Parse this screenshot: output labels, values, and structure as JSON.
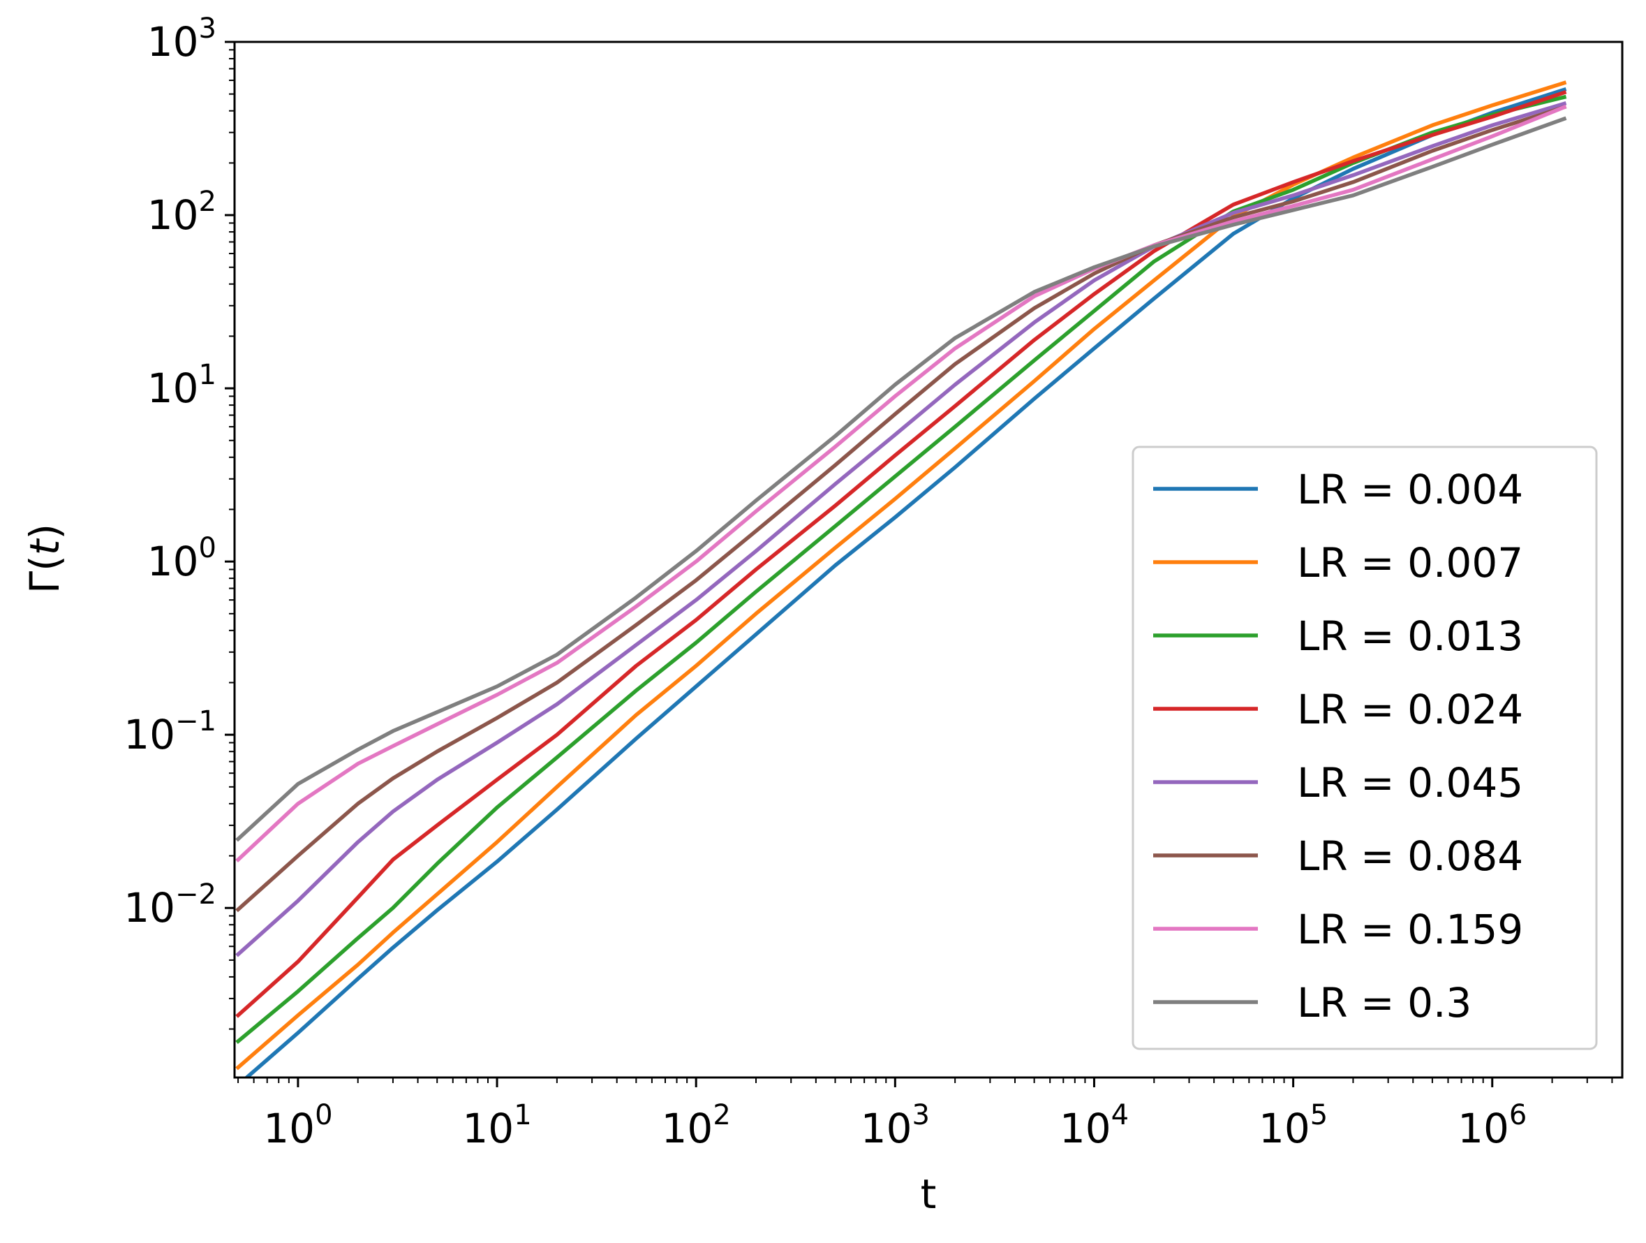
{
  "chart_data": {
    "type": "line",
    "xlabel": "t",
    "ylabel_base": "Γ(",
    "ylabel_var": "t",
    "ylabel_close": ")",
    "xscale": "log",
    "yscale": "log",
    "xlim": [
      0.48,
      4500000
    ],
    "ylim": [
      0.00105,
      1000
    ],
    "grid": false,
    "legend_position": "lower-right",
    "x_ticks": [
      {
        "base": "10",
        "exp": "0"
      },
      {
        "base": "10",
        "exp": "1"
      },
      {
        "base": "10",
        "exp": "2"
      },
      {
        "base": "10",
        "exp": "3"
      },
      {
        "base": "10",
        "exp": "4"
      },
      {
        "base": "10",
        "exp": "5"
      },
      {
        "base": "10",
        "exp": "6"
      }
    ],
    "y_ticks": [
      {
        "base": "10",
        "exp": "−2"
      },
      {
        "base": "10",
        "exp": "−1"
      },
      {
        "base": "10",
        "exp": "0"
      },
      {
        "base": "10",
        "exp": "1"
      },
      {
        "base": "10",
        "exp": "2"
      },
      {
        "base": "10",
        "exp": "3"
      }
    ],
    "x": [
      0.5,
      1,
      2,
      3,
      5,
      10,
      20,
      50,
      100,
      200,
      500,
      1000,
      2000,
      5000,
      10000,
      20000,
      50000,
      100000,
      200000,
      500000,
      1000000,
      2300000
    ],
    "series": [
      {
        "name": "LR = 0.004",
        "color": "#1f77b4",
        "values": [
          0.00095,
          0.0019,
          0.0039,
          0.0059,
          0.0097,
          0.0185,
          0.037,
          0.095,
          0.19,
          0.38,
          0.95,
          1.8,
          3.5,
          8.7,
          17,
          33,
          78,
          125,
          185,
          290,
          390,
          530
        ]
      },
      {
        "name": "LR = 0.007",
        "color": "#ff7f0e",
        "values": [
          0.0012,
          0.0024,
          0.0047,
          0.0072,
          0.012,
          0.024,
          0.05,
          0.13,
          0.25,
          0.5,
          1.2,
          2.3,
          4.5,
          11,
          22,
          42,
          98,
          150,
          215,
          330,
          430,
          580
        ]
      },
      {
        "name": "LR = 0.013",
        "color": "#2ca02c",
        "values": [
          0.0017,
          0.0033,
          0.0067,
          0.01,
          0.018,
          0.038,
          0.074,
          0.18,
          0.34,
          0.67,
          1.6,
          3.1,
          6,
          14.5,
          28,
          54,
          105,
          140,
          200,
          300,
          380,
          480
        ]
      },
      {
        "name": "LR = 0.024",
        "color": "#d62728",
        "values": [
          0.0024,
          0.0049,
          0.0115,
          0.019,
          0.03,
          0.055,
          0.1,
          0.25,
          0.46,
          0.9,
          2.1,
          4.1,
          7.9,
          19,
          35,
          62,
          115,
          155,
          205,
          290,
          370,
          510
        ]
      },
      {
        "name": "LR = 0.045",
        "color": "#9467bd",
        "values": [
          0.0054,
          0.011,
          0.024,
          0.036,
          0.055,
          0.09,
          0.15,
          0.33,
          0.6,
          1.15,
          2.8,
          5.4,
          10.5,
          24,
          42,
          66,
          103,
          130,
          170,
          250,
          330,
          440
        ]
      },
      {
        "name": "LR = 0.084",
        "color": "#8c564b",
        "values": [
          0.0098,
          0.02,
          0.04,
          0.056,
          0.08,
          0.125,
          0.2,
          0.43,
          0.78,
          1.5,
          3.6,
          7.1,
          13.8,
          29,
          46,
          67,
          97,
          120,
          155,
          235,
          310,
          420
        ]
      },
      {
        "name": "LR = 0.159",
        "color": "#e377c2",
        "values": [
          0.019,
          0.04,
          0.068,
          0.086,
          0.115,
          0.17,
          0.26,
          0.55,
          1,
          1.95,
          4.6,
          9,
          17,
          34,
          49,
          67,
          92,
          113,
          140,
          210,
          285,
          420
        ]
      },
      {
        "name": "LR = 0.3",
        "color": "#7f7f7f",
        "values": [
          0.025,
          0.052,
          0.082,
          0.105,
          0.135,
          0.19,
          0.29,
          0.62,
          1.15,
          2.25,
          5.3,
          10.5,
          19.5,
          36,
          50,
          66,
          88,
          107,
          130,
          190,
          255,
          360
        ]
      }
    ]
  }
}
